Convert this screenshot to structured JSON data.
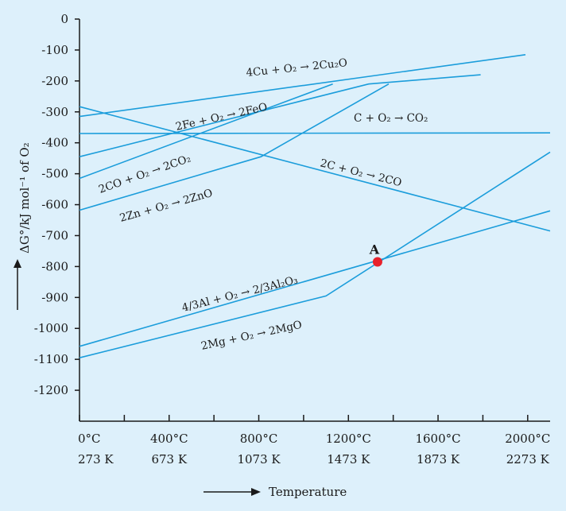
{
  "chart_data": {
    "type": "line",
    "title": "",
    "xlabel": "Temperature",
    "ylabel": "ΔG°/kJ mol⁻¹ of O₂",
    "xlim": [
      0,
      2100
    ],
    "ylim": [
      -1300,
      0
    ],
    "y_ticks": [
      0,
      -100,
      -200,
      -300,
      -400,
      -500,
      -600,
      -700,
      -800,
      -900,
      -1000,
      -1100,
      -1200
    ],
    "y_tick_labels": [
      "0",
      "-100",
      "-200",
      "-300",
      "-400",
      "-500",
      "-600",
      "-700",
      "-800",
      "-900",
      "-1000",
      "-1100",
      "-1200"
    ],
    "x_ticks_c": [
      0,
      400,
      800,
      1200,
      1600,
      2000
    ],
    "x_tick_labels_c": [
      "0°C",
      "400°C",
      "800°C",
      "1200°C",
      "1600°C",
      "2000°C"
    ],
    "x_tick_labels_k": [
      "273 K",
      "673 K",
      "1073 K",
      "1473 K",
      "1873 K",
      "2273 K"
    ],
    "series": [
      {
        "name": "4Cu + O₂ → 2Cu₂O",
        "points": [
          [
            0,
            -315
          ],
          [
            1990,
            -115
          ]
        ]
      },
      {
        "name": "2Fe + O₂ → 2FeO",
        "points": [
          [
            0,
            -445
          ],
          [
            1290,
            -210
          ],
          [
            1790,
            -180
          ]
        ]
      },
      {
        "name": "C + O₂ → CO₂",
        "points": [
          [
            0,
            -370
          ],
          [
            2100,
            -368
          ]
        ]
      },
      {
        "name": "2C + O₂ → 2CO",
        "points": [
          [
            0,
            -283
          ],
          [
            2100,
            -685
          ]
        ]
      },
      {
        "name": "2CO + O₂ → 2CO₂",
        "points": [
          [
            0,
            -515
          ],
          [
            1130,
            -210
          ]
        ]
      },
      {
        "name": "2Zn + O₂ → 2ZnO",
        "points": [
          [
            0,
            -618
          ],
          [
            810,
            -445
          ],
          [
            1380,
            -210
          ]
        ]
      },
      {
        "name": "4/3Al + O₂ → 2/3Al₂O₃",
        "points": [
          [
            0,
            -1058
          ],
          [
            2100,
            -620
          ]
        ]
      },
      {
        "name": "2Mg + O₂ → 2MgO",
        "points": [
          [
            0,
            -1095
          ],
          [
            1100,
            -895
          ],
          [
            2100,
            -430
          ]
        ]
      }
    ],
    "annotation": {
      "label": "A",
      "x": 1330,
      "y": -785,
      "color": "#e8212b"
    },
    "line_color": "#1b9ddb",
    "background": "#ddf0fb"
  }
}
